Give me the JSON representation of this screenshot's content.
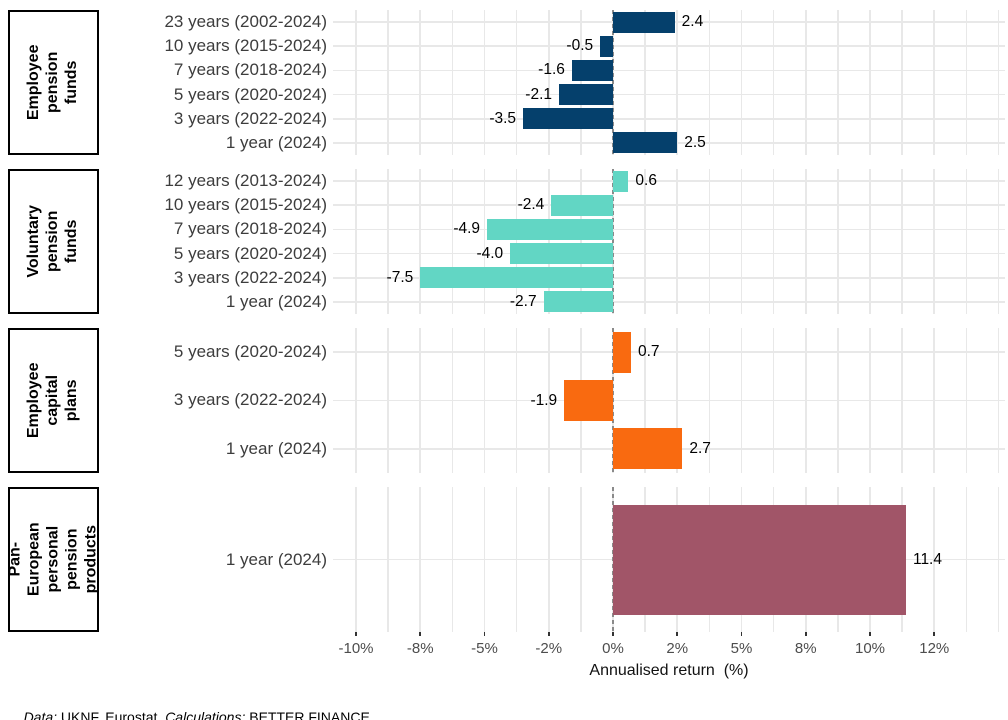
{
  "chart_data": {
    "type": "bar",
    "orientation": "horizontal",
    "xlabel": "Annualised return  (%)",
    "grid": "on",
    "zero_line": "dashed",
    "x_axis": {
      "minor_step_pct": 1.25,
      "range_pct": [
        -10.9,
        15.3
      ],
      "ticks": [
        {
          "value": -10,
          "label": "-10%"
        },
        {
          "value": -7.5,
          "label": "-8%"
        },
        {
          "value": -5,
          "label": "-5%"
        },
        {
          "value": -2.5,
          "label": "-2%"
        },
        {
          "value": 0,
          "label": "0%"
        },
        {
          "value": 2.5,
          "label": "2%"
        },
        {
          "value": 5,
          "label": "5%"
        },
        {
          "value": 7.5,
          "label": "8%"
        },
        {
          "value": 10,
          "label": "10%"
        },
        {
          "value": 12.5,
          "label": "12%"
        }
      ]
    },
    "facets": [
      {
        "strip_label": "Employee pension funds",
        "strip_lines": [
          "Employee",
          "pension funds"
        ],
        "color": "#05406c",
        "rows": [
          {
            "category": "23 years (2002-2024)",
            "value": 2.4,
            "value_label": "2.4"
          },
          {
            "category": "10 years (2015-2024)",
            "value": -0.5,
            "value_label": "-0.5"
          },
          {
            "category": "7 years (2018-2024)",
            "value": -1.6,
            "value_label": "-1.6"
          },
          {
            "category": "5 years (2020-2024)",
            "value": -2.1,
            "value_label": "-2.1"
          },
          {
            "category": "3 years (2022-2024)",
            "value": -3.5,
            "value_label": "-3.5"
          },
          {
            "category": "1 year (2024)",
            "value": 2.5,
            "value_label": "2.5"
          }
        ]
      },
      {
        "strip_label": "Voluntary pension funds",
        "strip_lines": [
          "Voluntary",
          "pension funds"
        ],
        "color": "#62d6c4",
        "rows": [
          {
            "category": "12 years (2013-2024)",
            "value": 0.6,
            "value_label": "0.6"
          },
          {
            "category": "10 years (2015-2024)",
            "value": -2.4,
            "value_label": "-2.4"
          },
          {
            "category": "7 years (2018-2024)",
            "value": -4.9,
            "value_label": "-4.9"
          },
          {
            "category": "5 years (2020-2024)",
            "value": -4.0,
            "value_label": "-4.0"
          },
          {
            "category": "3 years (2022-2024)",
            "value": -7.5,
            "value_label": "-7.5"
          },
          {
            "category": "1 year (2024)",
            "value": -2.7,
            "value_label": "-2.7"
          }
        ]
      },
      {
        "strip_label": "Employee capital plans",
        "strip_lines": [
          "Employee",
          "capital plans"
        ],
        "color": "#f96a10",
        "rows": [
          {
            "category": "5 years (2020-2024)",
            "value": 0.7,
            "value_label": "0.7"
          },
          {
            "category": "3 years (2022-2024)",
            "value": -1.9,
            "value_label": "-1.9"
          },
          {
            "category": "1 year (2024)",
            "value": 2.7,
            "value_label": "2.7"
          }
        ]
      },
      {
        "strip_label": "Pan-European personal pension products",
        "strip_lines": [
          "Pan-European",
          "personal",
          "pension",
          "products"
        ],
        "color": "#a15568",
        "rows": [
          {
            "category": "1 year (2024)",
            "value": 11.4,
            "value_label": "11.4"
          }
        ]
      }
    ]
  },
  "footer": {
    "data_label": "Data:",
    "data_text": " UKNF, Eurostat. ",
    "calc_label": "Calculations:",
    "calc_text": " BETTER FINANCE."
  },
  "colors": {
    "navy": "#05406c",
    "teal": "#62d6c4",
    "orange": "#f96a10",
    "maroon": "#a15568",
    "gridline": "#e8e8e8",
    "zero_line": "#8a8a8a",
    "axis_text": "#4d4d4d",
    "category_text": "#3d3d3d"
  }
}
